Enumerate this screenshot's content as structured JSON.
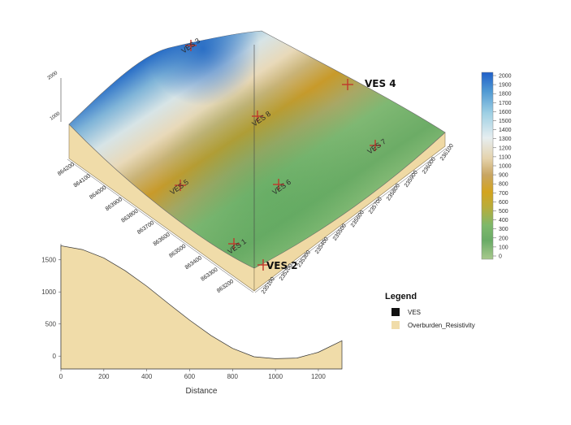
{
  "chart_data": [
    {
      "type": "surface",
      "subtype": "3d-block-diagram",
      "z_label_top": "2000",
      "z_label_mid": "1000",
      "y_ticks": [
        "864200",
        "864100",
        "864000",
        "863900",
        "863800",
        "863700",
        "863600",
        "863500",
        "863400",
        "863300",
        "863200"
      ],
      "x_ticks": [
        "235100",
        "235200",
        "235300",
        "235400",
        "235500",
        "235600",
        "235700",
        "235800",
        "235900",
        "236000",
        "236100"
      ],
      "points": [
        {
          "name": "VES 1",
          "label": "VES 1"
        },
        {
          "name": "VES 2",
          "label": "VES 2"
        },
        {
          "name": "VES 3",
          "label": "VES 3"
        },
        {
          "name": "VES 4",
          "label": "VES 4"
        },
        {
          "name": "VES 5",
          "label": "VES 5"
        },
        {
          "name": "VES 6",
          "label": "VES 6"
        },
        {
          "name": "VES 7",
          "label": "VES 7"
        },
        {
          "name": "VES 8",
          "label": "VES 8"
        }
      ]
    },
    {
      "type": "colorbar",
      "ticks": [
        "2000",
        "1900",
        "1800",
        "1700",
        "1600",
        "1500",
        "1400",
        "1300",
        "1200",
        "1100",
        "1000",
        "900",
        "800",
        "700",
        "600",
        "500",
        "400",
        "300",
        "200",
        "100",
        "0"
      ],
      "range": [
        0,
        2000
      ]
    },
    {
      "type": "area",
      "xlabel": "Distance",
      "x_ticks": [
        "0",
        "200",
        "400",
        "600",
        "800",
        "1000",
        "1200"
      ],
      "y_ticks": [
        "1500",
        "1000",
        "500",
        "0"
      ],
      "xlim": [
        0,
        1310
      ],
      "ylim": [
        -200,
        1750
      ],
      "x": [
        0,
        100,
        200,
        300,
        400,
        500,
        600,
        700,
        800,
        900,
        1000,
        1100,
        1200,
        1310
      ],
      "y": [
        1720,
        1660,
        1530,
        1330,
        1090,
        820,
        560,
        320,
        120,
        -10,
        -40,
        -30,
        60,
        240
      ]
    }
  ],
  "legend": {
    "title": "Legend",
    "items": [
      {
        "label": "VES",
        "color": "#111111"
      },
      {
        "label": "Overburden_Resistivity",
        "color": "#f0dca9"
      }
    ]
  },
  "colors": {
    "block_side": "#f0dca9",
    "marker": "#c0392b"
  }
}
